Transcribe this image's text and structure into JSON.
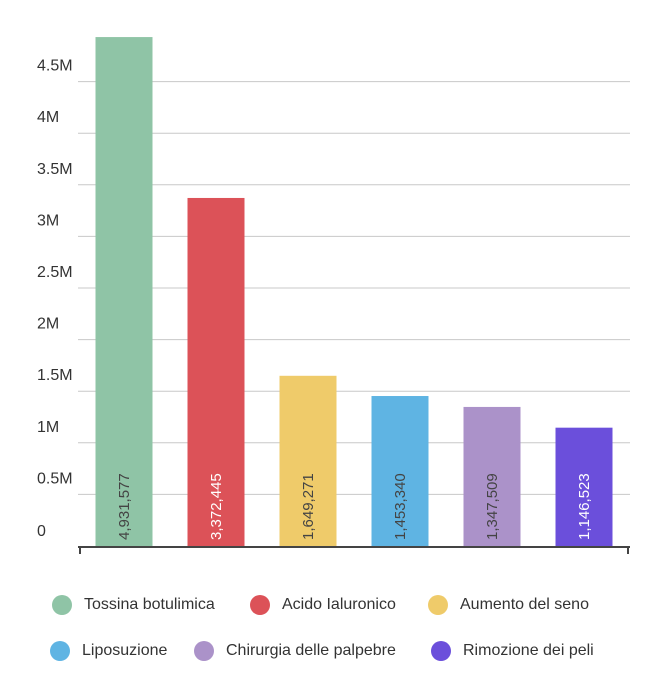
{
  "chart_data": {
    "type": "bar",
    "categories": [
      "Tossina botulimica",
      "Acido Ialuronico",
      "Aumento del seno",
      "Liposuzione",
      "Chirurgia delle palpebre",
      "Rimozione dei peli"
    ],
    "values": [
      4931577,
      3372445,
      1649271,
      1453340,
      1347509,
      1146523
    ],
    "value_labels": [
      "4,931,577",
      "3,372,445",
      "1,649,271",
      "1,453,340",
      "1,347,509",
      "1,146,523"
    ],
    "colors": [
      "#8fc4a6",
      "#dc5258",
      "#efcb6a",
      "#5fb4e3",
      "#ab92c9",
      "#6b4fdb"
    ],
    "label_colors": [
      "#444444",
      "#ffffff",
      "#444444",
      "#444444",
      "#444444",
      "#ffffff"
    ],
    "y_ticks": [
      "0",
      "0.5M",
      "1M",
      "1.5M",
      "2M",
      "2.5M",
      "3M",
      "3.5M",
      "4M",
      "4.5M"
    ],
    "ylim": [
      0,
      5000000
    ],
    "grid": true,
    "legend": "bottom",
    "title": "",
    "xlabel": "",
    "ylabel": ""
  }
}
